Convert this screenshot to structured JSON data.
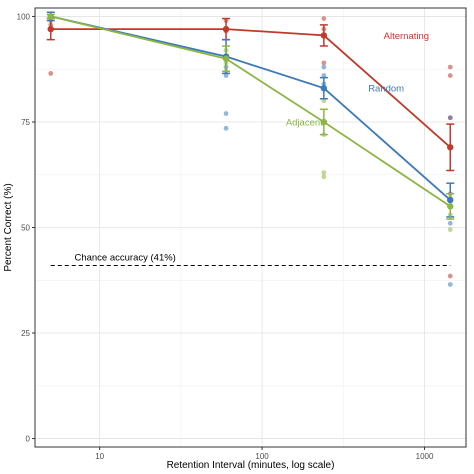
{
  "chart_data": {
    "type": "line",
    "xlabel": "Retention Interval (minutes, log scale)",
    "ylabel": "Percent Correct (%)",
    "x_scale": "log",
    "xlim": [
      4,
      1800
    ],
    "ylim": [
      -2,
      102
    ],
    "x_ticks": [
      10,
      100,
      1000
    ],
    "x_tick_labels": [
      "10",
      "100",
      "1000"
    ],
    "y_ticks": [
      0,
      25,
      50,
      75,
      100
    ],
    "y_tick_labels": [
      "0",
      "25",
      "50",
      "75",
      "100"
    ],
    "grid": true,
    "x": [
      5,
      60,
      240,
      1440
    ],
    "series": [
      {
        "name": "Alternating",
        "color": "#c0392b",
        "values": [
          97,
          97,
          95.5,
          69
        ],
        "error": [
          2.5,
          2.5,
          2.5,
          5.5
        ],
        "points": [
          [
            5,
            98
          ],
          [
            5,
            86.5
          ],
          [
            60,
            99
          ],
          [
            60,
            96.5
          ],
          [
            240,
            99.5
          ],
          [
            240,
            97
          ],
          [
            240,
            89
          ],
          [
            1440,
            88
          ],
          [
            1440,
            86
          ],
          [
            1440,
            76
          ],
          [
            1440,
            58
          ],
          [
            1440,
            38.5
          ]
        ]
      },
      {
        "name": "Random",
        "color": "#3d7ab8",
        "values": [
          100,
          90.5,
          83,
          56.5
        ],
        "error": [
          1,
          4,
          2.5,
          4
        ],
        "points": [
          [
            5,
            99.5
          ],
          [
            5,
            99
          ],
          [
            60,
            88
          ],
          [
            60,
            86
          ],
          [
            60,
            77
          ],
          [
            60,
            73.5
          ],
          [
            240,
            88
          ],
          [
            240,
            86
          ],
          [
            240,
            84
          ],
          [
            1440,
            76
          ],
          [
            1440,
            55
          ],
          [
            1440,
            51
          ],
          [
            1440,
            36.5
          ]
        ]
      },
      {
        "name": "Adjacent",
        "color": "#8cb645",
        "values": [
          100,
          90,
          75,
          55
        ],
        "error": [
          0.5,
          3,
          3,
          3
        ],
        "points": [
          [
            5,
            99.5
          ],
          [
            60,
            92
          ],
          [
            60,
            89
          ],
          [
            60,
            87
          ],
          [
            240,
            80
          ],
          [
            240,
            72
          ],
          [
            240,
            63
          ],
          [
            240,
            62
          ],
          [
            1440,
            57
          ],
          [
            1440,
            53
          ],
          [
            1440,
            49.5
          ]
        ]
      }
    ],
    "annotations": [
      {
        "text": "Alternating",
        "x": 560,
        "y": 95.5,
        "series": "Alternating"
      },
      {
        "text": "Random",
        "x": 450,
        "y": 83,
        "series": "Random"
      },
      {
        "text": "Adjacent",
        "x": 140,
        "y": 75,
        "series": "Adjacent"
      },
      {
        "text": "Chance accuracy (41%)",
        "x": 7,
        "y": 43
      }
    ],
    "hlines": [
      {
        "y": 41,
        "style": "dashed",
        "color": "#000000"
      }
    ]
  }
}
